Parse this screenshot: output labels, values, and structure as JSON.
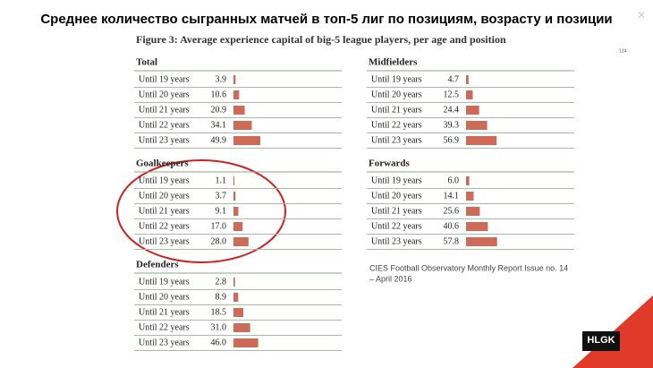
{
  "page": {
    "title": "Среднее количество сыгранных матчей в топ-5 лиг по позициям, возрасту и позиции",
    "caption": "Figure 3: Average experience capital of big-5 league players, per age and position",
    "page_number": "124",
    "source": [
      "CIES Football Observatory Monthly Report Issue no. 14",
      "– April 2016"
    ],
    "logo": "HLGK"
  },
  "chart_data": [
    {
      "type": "bar",
      "title": "Total",
      "color": "#cd6a58",
      "categories": [
        "Until 19 years",
        "Until 20 years",
        "Until 21 years",
        "Until 22 years",
        "Until 23 years"
      ],
      "values": [
        3.9,
        10.6,
        20.9,
        34.1,
        49.9
      ]
    },
    {
      "type": "bar",
      "title": "Goalkeepers",
      "color": "#cd6a58",
      "categories": [
        "Until 19 years",
        "Until 20 years",
        "Until 21 years",
        "Until 22 years",
        "Until 23 years"
      ],
      "values": [
        1.1,
        3.7,
        9.1,
        17,
        28
      ],
      "value_labels": [
        "1.1",
        "3.7",
        "9.1",
        "17.0",
        "28.0"
      ]
    },
    {
      "type": "bar",
      "title": "Defenders",
      "color": "#cd6a58",
      "categories": [
        "Until 19 years",
        "Until 20 years",
        "Until 21 years",
        "Until 22 years",
        "Until 23 years"
      ],
      "values": [
        2.8,
        8.9,
        18.5,
        31,
        46
      ],
      "value_labels": [
        "2.8",
        "8.9",
        "18.5",
        "31.0",
        "46.0"
      ]
    },
    {
      "type": "bar",
      "title": "Midfielders",
      "color": "#cd6a58",
      "categories": [
        "Until 19 years",
        "Until 20 years",
        "Until 21 years",
        "Until 22 years",
        "Until 23 years"
      ],
      "values": [
        4.7,
        12.5,
        24.4,
        39.3,
        56.9
      ]
    },
    {
      "type": "bar",
      "title": "Forwards",
      "color": "#cd6a58",
      "categories": [
        "Until 19 years",
        "Until 20 years",
        "Until 21 years",
        "Until 22 years",
        "Until 23 years"
      ],
      "values": [
        6,
        14.1,
        25.6,
        40.6,
        57.8
      ],
      "value_labels": [
        "6.0",
        "14.1",
        "25.6",
        "40.6",
        "57.8"
      ]
    }
  ]
}
